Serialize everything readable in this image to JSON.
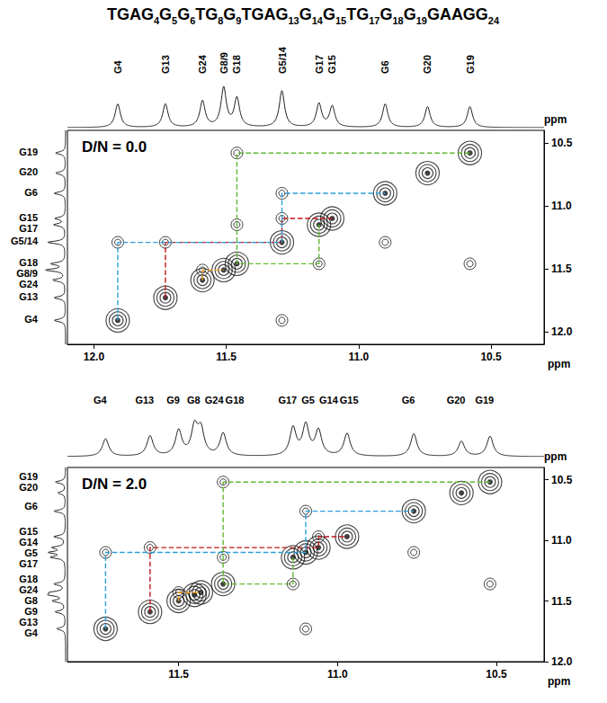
{
  "sequence": [
    {
      "text": "TGA",
      "color": "#000000"
    },
    {
      "text": "G",
      "sub": "4",
      "color": "#2b9fd9"
    },
    {
      "text": "G",
      "sub": "5",
      "color": "#2b9fd9"
    },
    {
      "text": "G",
      "sub": "6",
      "color": "#2b9fd9"
    },
    {
      "text": "T",
      "color": "#000000"
    },
    {
      "text": "G",
      "sub": "8",
      "color": "#f7a21b"
    },
    {
      "text": "G",
      "sub": "9",
      "color": "#f7a21b"
    },
    {
      "text": "TGA",
      "color": "#000000"
    },
    {
      "text": "G",
      "sub": "13",
      "color": "#c0151b"
    },
    {
      "text": "G",
      "sub": "14",
      "color": "#c0151b"
    },
    {
      "text": "G",
      "sub": "15",
      "color": "#c0151b"
    },
    {
      "text": "T",
      "color": "#000000"
    },
    {
      "text": "G",
      "sub": "17",
      "color": "#7ac143"
    },
    {
      "text": "G",
      "sub": "18",
      "color": "#7ac143"
    },
    {
      "text": "G",
      "sub": "19",
      "color": "#7ac143"
    },
    {
      "text": "GAAG",
      "color": "#000000"
    },
    {
      "text": "G",
      "sub": "24",
      "color": "#f7a21b"
    }
  ],
  "chart_data": [
    {
      "type": "contour",
      "annotation": "D/N = 0.0",
      "xlabel": "ppm",
      "ylabel": "ppm",
      "xlim": [
        12.1,
        10.3
      ],
      "xticks": [
        {
          "value": 12,
          "label": "12.0"
        },
        11.5,
        {
          "value": 11,
          "label": "11.0"
        },
        10.5
      ],
      "ylim": [
        12.1,
        10.4
      ],
      "yticks": [
        10.5,
        {
          "value": 11,
          "label": "11.0"
        },
        11.5,
        {
          "value": 12,
          "label": "12.0"
        }
      ],
      "grid": false,
      "intensity_lim": [
        0,
        1
      ],
      "peaks": [
        {
          "label": "G4",
          "shift": 11.91,
          "intensity": 0.45
        },
        {
          "label": "G13",
          "shift": 11.73,
          "intensity": 0.45
        },
        {
          "label": "G24",
          "shift": 11.59,
          "intensity": 0.5
        },
        {
          "label": "G8/9",
          "shift": 11.51,
          "intensity": 0.75
        },
        {
          "label": "G18",
          "shift": 11.46,
          "intensity": 0.55
        },
        {
          "label": "G5/14",
          "shift": 11.29,
          "intensity": 0.7
        },
        {
          "label": "G17",
          "shift": 11.15,
          "intensity": 0.45
        },
        {
          "label": "G15",
          "shift": 11.1,
          "intensity": 0.4
        },
        {
          "label": "G6",
          "shift": 10.9,
          "intensity": 0.45
        },
        {
          "label": "G20",
          "shift": 10.74,
          "intensity": 0.4
        },
        {
          "label": "G19",
          "shift": 10.58,
          "intensity": 0.4
        }
      ],
      "cross_peaks": [
        [
          11.91,
          11.29
        ],
        [
          11.29,
          11.91
        ],
        [
          11.29,
          10.9
        ],
        [
          10.9,
          11.29
        ],
        [
          11.46,
          10.58
        ],
        [
          10.58,
          11.46
        ],
        [
          11.15,
          11.46
        ],
        [
          11.46,
          11.15
        ],
        [
          11.73,
          11.29
        ],
        [
          11.29,
          11.1
        ],
        [
          11.59,
          11.51
        ]
      ],
      "connections": [
        {
          "color": "#c0151b",
          "line_style": "dashed",
          "points": [
            [
              11.73,
              11.73
            ],
            [
              11.73,
              11.29
            ],
            [
              11.29,
              11.29
            ],
            [
              11.29,
              11.1
            ],
            [
              11.1,
              11.1
            ]
          ]
        },
        {
          "color": "#f7a21b",
          "line_style": "dashed",
          "points": [
            [
              11.59,
              11.59
            ],
            [
              11.59,
              11.51
            ],
            [
              11.51,
              11.51
            ]
          ]
        },
        {
          "color": "#2b9fd9",
          "line_style": "dashed",
          "points": [
            [
              11.91,
              11.91
            ],
            [
              11.91,
              11.29
            ],
            [
              11.29,
              11.29
            ],
            [
              11.29,
              10.9
            ],
            [
              10.9,
              10.9
            ]
          ]
        },
        {
          "color": "#5fb832",
          "line_style": "dashed",
          "points": [
            [
              10.58,
              10.58
            ],
            [
              11.46,
              10.58
            ],
            [
              11.46,
              11.46
            ],
            [
              11.15,
              11.46
            ],
            [
              11.15,
              11.15
            ]
          ]
        }
      ]
    },
    {
      "type": "contour",
      "annotation": "D/N = 2.0",
      "xlabel": "ppm",
      "ylabel": "ppm",
      "xlim": [
        11.85,
        10.35
      ],
      "xticks": [
        11.5,
        {
          "value": 11,
          "label": "11.0"
        },
        10.5
      ],
      "ylim": [
        12.0,
        10.4
      ],
      "yticks": [
        10.5,
        {
          "value": 11,
          "label": "11.0"
        },
        11.5,
        {
          "value": 12,
          "label": "12.0"
        }
      ],
      "grid": false,
      "intensity_lim": [
        0,
        1
      ],
      "peaks": [
        {
          "label": "G4",
          "shift": 11.73,
          "intensity": 0.35
        },
        {
          "label": "G13",
          "shift": 11.59,
          "intensity": 0.4
        },
        {
          "label": "G9",
          "shift": 11.5,
          "intensity": 0.5
        },
        {
          "label": "G8",
          "shift": 11.45,
          "intensity": 0.55
        },
        {
          "label": "G24",
          "shift": 11.43,
          "intensity": 0.5
        },
        {
          "label": "G18",
          "shift": 11.36,
          "intensity": 0.45
        },
        {
          "label": "G17",
          "shift": 11.14,
          "intensity": 0.55
        },
        {
          "label": "G5",
          "shift": 11.1,
          "intensity": 0.6
        },
        {
          "label": "G14",
          "shift": 11.06,
          "intensity": 0.5
        },
        {
          "label": "G15",
          "shift": 10.97,
          "intensity": 0.45
        },
        {
          "label": "G6",
          "shift": 10.76,
          "intensity": 0.45
        },
        {
          "label": "G20",
          "shift": 10.61,
          "intensity": 0.3
        },
        {
          "label": "G19",
          "shift": 10.52,
          "intensity": 0.4
        }
      ],
      "cross_peaks": [
        [
          11.73,
          11.1
        ],
        [
          11.1,
          11.73
        ],
        [
          11.1,
          10.76
        ],
        [
          10.76,
          11.1
        ],
        [
          11.36,
          10.52
        ],
        [
          10.52,
          11.36
        ],
        [
          11.14,
          11.36
        ],
        [
          11.36,
          11.14
        ],
        [
          11.59,
          11.06
        ],
        [
          11.06,
          10.97
        ],
        [
          11.5,
          11.43
        ]
      ],
      "connections": [
        {
          "color": "#c0151b",
          "line_style": "dashed",
          "points": [
            [
              11.59,
              11.59
            ],
            [
              11.59,
              11.06
            ],
            [
              11.06,
              11.06
            ],
            [
              11.06,
              10.97
            ],
            [
              10.97,
              10.97
            ]
          ]
        },
        {
          "color": "#f7a21b",
          "line_style": "dashed",
          "points": [
            [
              11.5,
              11.5
            ],
            [
              11.5,
              11.43
            ],
            [
              11.43,
              11.43
            ]
          ]
        },
        {
          "color": "#2b9fd9",
          "line_style": "dashed",
          "points": [
            [
              11.73,
              11.73
            ],
            [
              11.73,
              11.1
            ],
            [
              11.1,
              11.1
            ],
            [
              11.1,
              10.76
            ],
            [
              10.76,
              10.76
            ]
          ]
        },
        {
          "color": "#5fb832",
          "line_style": "dashed",
          "points": [
            [
              10.52,
              10.52
            ],
            [
              11.36,
              10.52
            ],
            [
              11.36,
              11.36
            ],
            [
              11.14,
              11.36
            ],
            [
              11.14,
              11.14
            ]
          ]
        }
      ]
    }
  ]
}
